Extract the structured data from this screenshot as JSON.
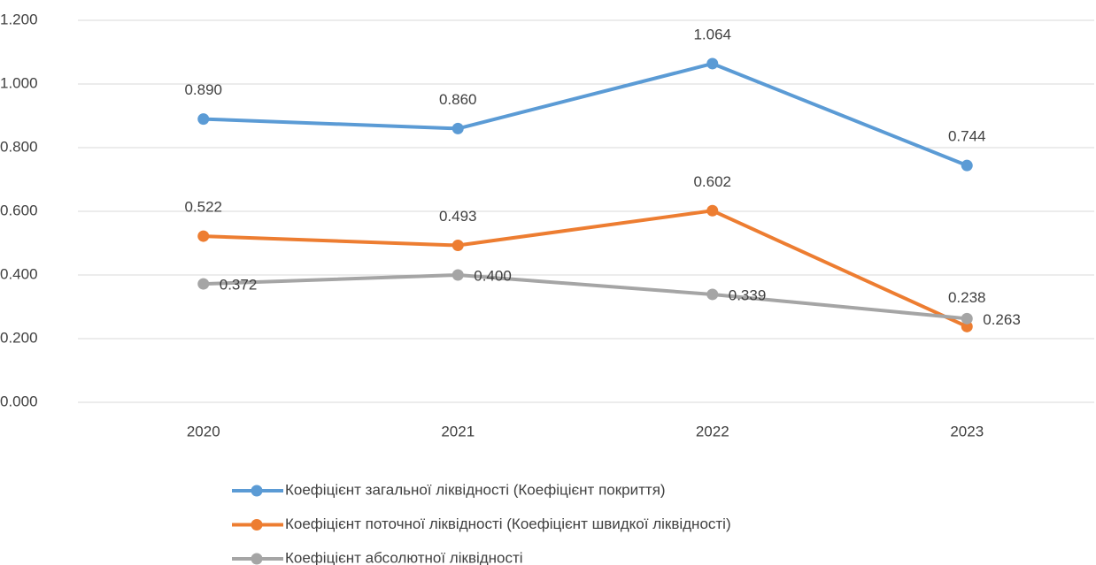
{
  "chart_data": {
    "type": "line",
    "categories": [
      "2020",
      "2021",
      "2022",
      "2023"
    ],
    "series": [
      {
        "name": "Коефіцієнт загальної ліквідності (Коефіцієнт покриття)",
        "color": "#5b9bd5",
        "values": [
          0.89,
          0.86,
          1.064,
          0.744
        ],
        "value_labels": [
          "0.890",
          "0.860",
          "1.064",
          "0.744"
        ]
      },
      {
        "name": "Коефіцієнт поточної ліквідності (Коефіцієнт швидкої ліквідності)",
        "color": "#ed7d31",
        "values": [
          0.522,
          0.493,
          0.602,
          0.238
        ],
        "value_labels": [
          "0.522",
          "0.493",
          "0.602",
          "0.238"
        ]
      },
      {
        "name": "Коефіцієнт абсолютної ліквідності",
        "color": "#a5a5a5",
        "values": [
          0.372,
          0.4,
          0.339,
          0.263
        ],
        "value_labels": [
          "0.372",
          "0.400",
          "0.339",
          "0.263"
        ]
      }
    ],
    "ylim": [
      0,
      1.2
    ],
    "yticks": [
      {
        "value": 0,
        "label": "0.000"
      },
      {
        "value": 0.2,
        "label": "0.200"
      },
      {
        "value": 0.4,
        "label": "0.400"
      },
      {
        "value": 0.6,
        "label": "0.600"
      },
      {
        "value": 0.8,
        "label": "0.800"
      },
      {
        "value": 1.0,
        "label": "1.000"
      },
      {
        "value": 1.2,
        "label": "1.200"
      }
    ],
    "grid": true
  }
}
